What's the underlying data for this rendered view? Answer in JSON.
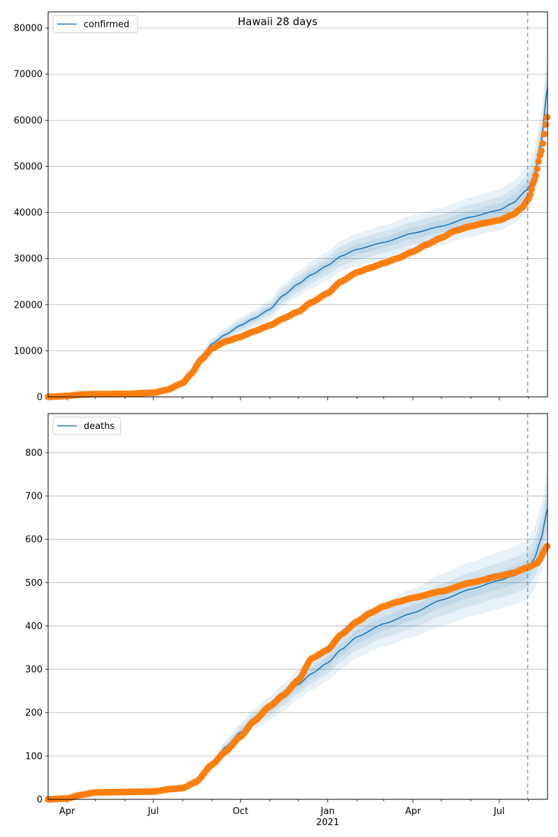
{
  "figure_title": "Hawaii 28 days",
  "colors": {
    "model": "#1f77b4",
    "observed": "#ff7f0e",
    "grid": "#b0b0b0",
    "axis": "#000000",
    "forecast_line": "#1f77b4"
  },
  "chart_data": [
    {
      "type": "line",
      "name": "confirmed",
      "title": "Hawaii 28 days",
      "xlabel": "",
      "ylabel": "",
      "x_range": [
        "2020-03-12",
        "2021-08-21"
      ],
      "ylim": [
        0,
        83500
      ],
      "y_ticks": [
        0,
        10000,
        20000,
        30000,
        40000,
        50000,
        60000,
        70000,
        80000
      ],
      "grid": "horizontal",
      "legend": {
        "position": "top-left",
        "entries": [
          "confirmed"
        ]
      },
      "forecast_start": "2021-07-31",
      "model_series": {
        "name": "confirmed",
        "points": [
          [
            "2020-03-12",
            0
          ],
          [
            "2020-04-01",
            150
          ],
          [
            "2020-05-01",
            500
          ],
          [
            "2020-06-01",
            600
          ],
          [
            "2020-07-01",
            800
          ],
          [
            "2020-07-20",
            1600
          ],
          [
            "2020-08-01",
            3000
          ],
          [
            "2020-08-10",
            5500
          ],
          [
            "2020-08-20",
            8500
          ],
          [
            "2020-09-01",
            11500
          ],
          [
            "2020-09-15",
            13500
          ],
          [
            "2020-10-01",
            15500
          ],
          [
            "2020-10-15",
            17000
          ],
          [
            "2020-11-01",
            19000
          ],
          [
            "2020-11-15",
            22000
          ],
          [
            "2020-12-01",
            24500
          ],
          [
            "2020-12-15",
            26500
          ],
          [
            "2021-01-01",
            28500
          ],
          [
            "2021-01-15",
            30500
          ],
          [
            "2021-02-01",
            32000
          ],
          [
            "2021-03-01",
            33500
          ],
          [
            "2021-04-01",
            35500
          ],
          [
            "2021-05-01",
            37000
          ],
          [
            "2021-06-01",
            39000
          ],
          [
            "2021-07-01",
            40500
          ],
          [
            "2021-07-15",
            42000
          ],
          [
            "2021-07-31",
            45000
          ],
          [
            "2021-08-07",
            48000
          ],
          [
            "2021-08-14",
            55000
          ],
          [
            "2021-08-21",
            67000
          ]
        ],
        "band_widths": [
          0.035,
          0.07,
          0.11
        ]
      },
      "observed_series": {
        "name": "observed",
        "points": [
          [
            "2020-03-12",
            0
          ],
          [
            "2020-04-01",
            200
          ],
          [
            "2020-04-15",
            500
          ],
          [
            "2020-05-01",
            600
          ],
          [
            "2020-06-01",
            650
          ],
          [
            "2020-07-01",
            900
          ],
          [
            "2020-07-15",
            1500
          ],
          [
            "2020-08-01",
            3000
          ],
          [
            "2020-08-10",
            5000
          ],
          [
            "2020-08-20",
            8000
          ],
          [
            "2020-09-01",
            10500
          ],
          [
            "2020-09-15",
            12000
          ],
          [
            "2020-10-01",
            13000
          ],
          [
            "2020-10-15",
            14200
          ],
          [
            "2020-11-01",
            15500
          ],
          [
            "2020-11-15",
            17000
          ],
          [
            "2020-12-01",
            18500
          ],
          [
            "2020-12-15",
            20500
          ],
          [
            "2021-01-01",
            22500
          ],
          [
            "2021-01-15",
            25000
          ],
          [
            "2021-02-01",
            27000
          ],
          [
            "2021-02-15",
            28000
          ],
          [
            "2021-03-01",
            29000
          ],
          [
            "2021-03-15",
            30000
          ],
          [
            "2021-04-01",
            31500
          ],
          [
            "2021-04-15",
            33000
          ],
          [
            "2021-05-01",
            34500
          ],
          [
            "2021-05-15",
            36000
          ],
          [
            "2021-06-01",
            37000
          ],
          [
            "2021-06-15",
            37700
          ],
          [
            "2021-07-01",
            38300
          ],
          [
            "2021-07-15",
            39500
          ],
          [
            "2021-07-25",
            41000
          ],
          [
            "2021-08-01",
            43000
          ],
          [
            "2021-08-07",
            47000
          ],
          [
            "2021-08-14",
            53000
          ],
          [
            "2021-08-21",
            61000
          ]
        ]
      }
    },
    {
      "type": "line",
      "name": "deaths",
      "xlabel": "",
      "ylabel": "",
      "x_range": [
        "2020-03-12",
        "2021-08-21"
      ],
      "ylim": [
        0,
        890
      ],
      "y_ticks": [
        0,
        100,
        200,
        300,
        400,
        500,
        600,
        700,
        800
      ],
      "grid": "horizontal",
      "legend": {
        "position": "top-left",
        "entries": [
          "deaths"
        ]
      },
      "forecast_start": "2021-07-31",
      "x_tick_labels": [
        {
          "date": "2020-04-01",
          "label": "Apr"
        },
        {
          "date": "2020-07-01",
          "label": "Jul"
        },
        {
          "date": "2020-10-01",
          "label": "Oct"
        },
        {
          "date": "2021-01-01",
          "label": "Jan",
          "sublabel": "2021"
        },
        {
          "date": "2021-04-01",
          "label": "Apr"
        },
        {
          "date": "2021-07-01",
          "label": "Jul"
        }
      ],
      "model_series": {
        "name": "deaths",
        "points": [
          [
            "2020-03-12",
            0
          ],
          [
            "2020-04-15",
            8
          ],
          [
            "2020-05-01",
            15
          ],
          [
            "2020-06-01",
            17
          ],
          [
            "2020-07-01",
            18
          ],
          [
            "2020-07-20",
            22
          ],
          [
            "2020-08-01",
            28
          ],
          [
            "2020-08-15",
            45
          ],
          [
            "2020-09-01",
            80
          ],
          [
            "2020-09-15",
            120
          ],
          [
            "2020-10-01",
            155
          ],
          [
            "2020-10-15",
            185
          ],
          [
            "2020-11-01",
            210
          ],
          [
            "2020-11-15",
            235
          ],
          [
            "2020-12-01",
            265
          ],
          [
            "2020-12-15",
            290
          ],
          [
            "2021-01-01",
            315
          ],
          [
            "2021-01-15",
            345
          ],
          [
            "2021-02-01",
            375
          ],
          [
            "2021-03-01",
            405
          ],
          [
            "2021-04-01",
            430
          ],
          [
            "2021-05-01",
            460
          ],
          [
            "2021-06-01",
            485
          ],
          [
            "2021-07-01",
            505
          ],
          [
            "2021-07-15",
            515
          ],
          [
            "2021-07-31",
            530
          ],
          [
            "2021-08-07",
            555
          ],
          [
            "2021-08-14",
            600
          ],
          [
            "2021-08-21",
            670
          ]
        ],
        "band_widths": [
          0.04,
          0.08,
          0.13
        ]
      },
      "observed_series": {
        "name": "observed",
        "points": [
          [
            "2020-03-12",
            0
          ],
          [
            "2020-04-01",
            2
          ],
          [
            "2020-04-15",
            10
          ],
          [
            "2020-05-01",
            16
          ],
          [
            "2020-06-01",
            17
          ],
          [
            "2020-07-01",
            18
          ],
          [
            "2020-07-20",
            24
          ],
          [
            "2020-08-01",
            26
          ],
          [
            "2020-08-15",
            40
          ],
          [
            "2020-09-01",
            80
          ],
          [
            "2020-09-15",
            110
          ],
          [
            "2020-10-01",
            145
          ],
          [
            "2020-10-15",
            180
          ],
          [
            "2020-11-01",
            215
          ],
          [
            "2020-11-15",
            240
          ],
          [
            "2020-12-01",
            275
          ],
          [
            "2020-12-15",
            325
          ],
          [
            "2021-01-01",
            345
          ],
          [
            "2021-01-15",
            380
          ],
          [
            "2021-02-01",
            410
          ],
          [
            "2021-02-15",
            430
          ],
          [
            "2021-03-01",
            445
          ],
          [
            "2021-03-15",
            455
          ],
          [
            "2021-04-01",
            465
          ],
          [
            "2021-05-01",
            480
          ],
          [
            "2021-06-01",
            500
          ],
          [
            "2021-07-01",
            515
          ],
          [
            "2021-07-15",
            522
          ],
          [
            "2021-07-31",
            535
          ],
          [
            "2021-08-10",
            545
          ],
          [
            "2021-08-21",
            585
          ]
        ]
      }
    }
  ]
}
